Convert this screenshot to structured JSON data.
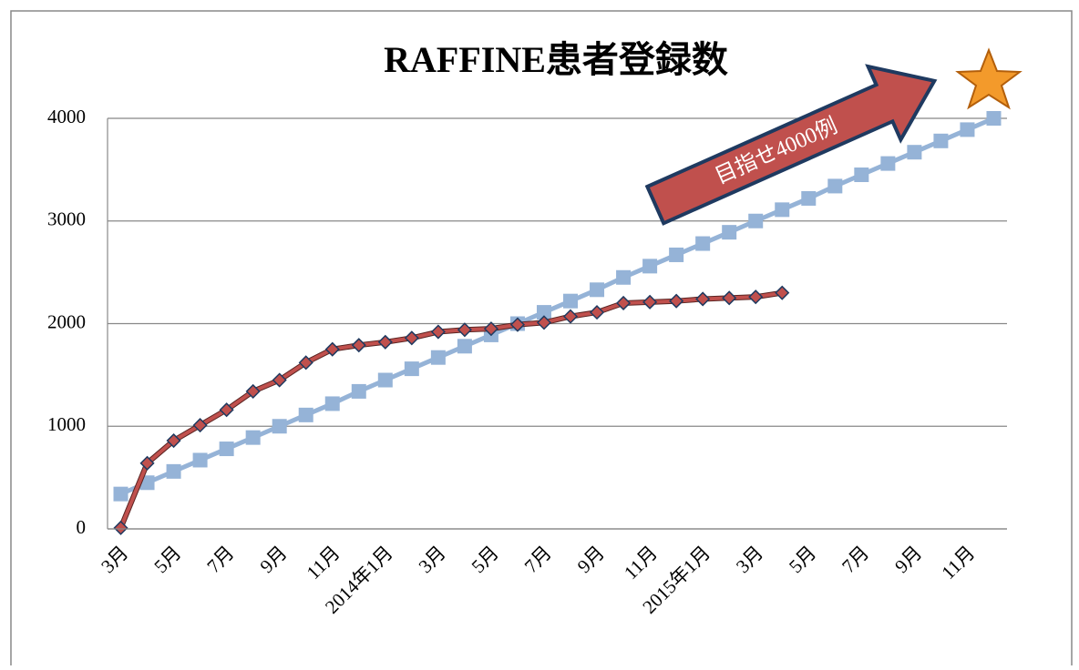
{
  "chart_data": {
    "type": "line",
    "title": "RAFFINE患者登録数",
    "annotation": "目指せ4000例",
    "categories": [
      "3月",
      null,
      "5月",
      null,
      "7月",
      null,
      "9月",
      null,
      "11月",
      null,
      "2014年1月",
      null,
      "3月",
      null,
      "5月",
      null,
      "7月",
      null,
      "9月",
      null,
      "11月",
      null,
      "2015年1月",
      null,
      "3月",
      null,
      "5月",
      null,
      "7月",
      null,
      "9月",
      null,
      "11月",
      null
    ],
    "series": [
      {
        "color": "#95b3d7",
        "values": [
          340,
          450,
          560,
          670,
          780,
          890,
          1000,
          1110,
          1220,
          1340,
          1450,
          1560,
          1670,
          1780,
          1890,
          2000,
          2110,
          2220,
          2330,
          2450,
          2560,
          2670,
          2780,
          2890,
          3000,
          3110,
          3220,
          3340,
          3450,
          3560,
          3670,
          3780,
          3890,
          4000
        ]
      },
      {
        "color": "#c0504d",
        "values": [
          10,
          640,
          860,
          1010,
          1160,
          1340,
          1450,
          1620,
          1750,
          1790,
          1820,
          1860,
          1920,
          1940,
          1950,
          1990,
          2010,
          2070,
          2110,
          2200,
          2210,
          2220,
          2240,
          2250,
          2260,
          2300,
          null,
          null,
          null,
          null,
          null,
          null,
          null,
          null
        ]
      }
    ],
    "ylim": [
      0,
      4000
    ],
    "yticks": [
      0,
      1000,
      2000,
      3000,
      4000
    ],
    "grid": true
  }
}
